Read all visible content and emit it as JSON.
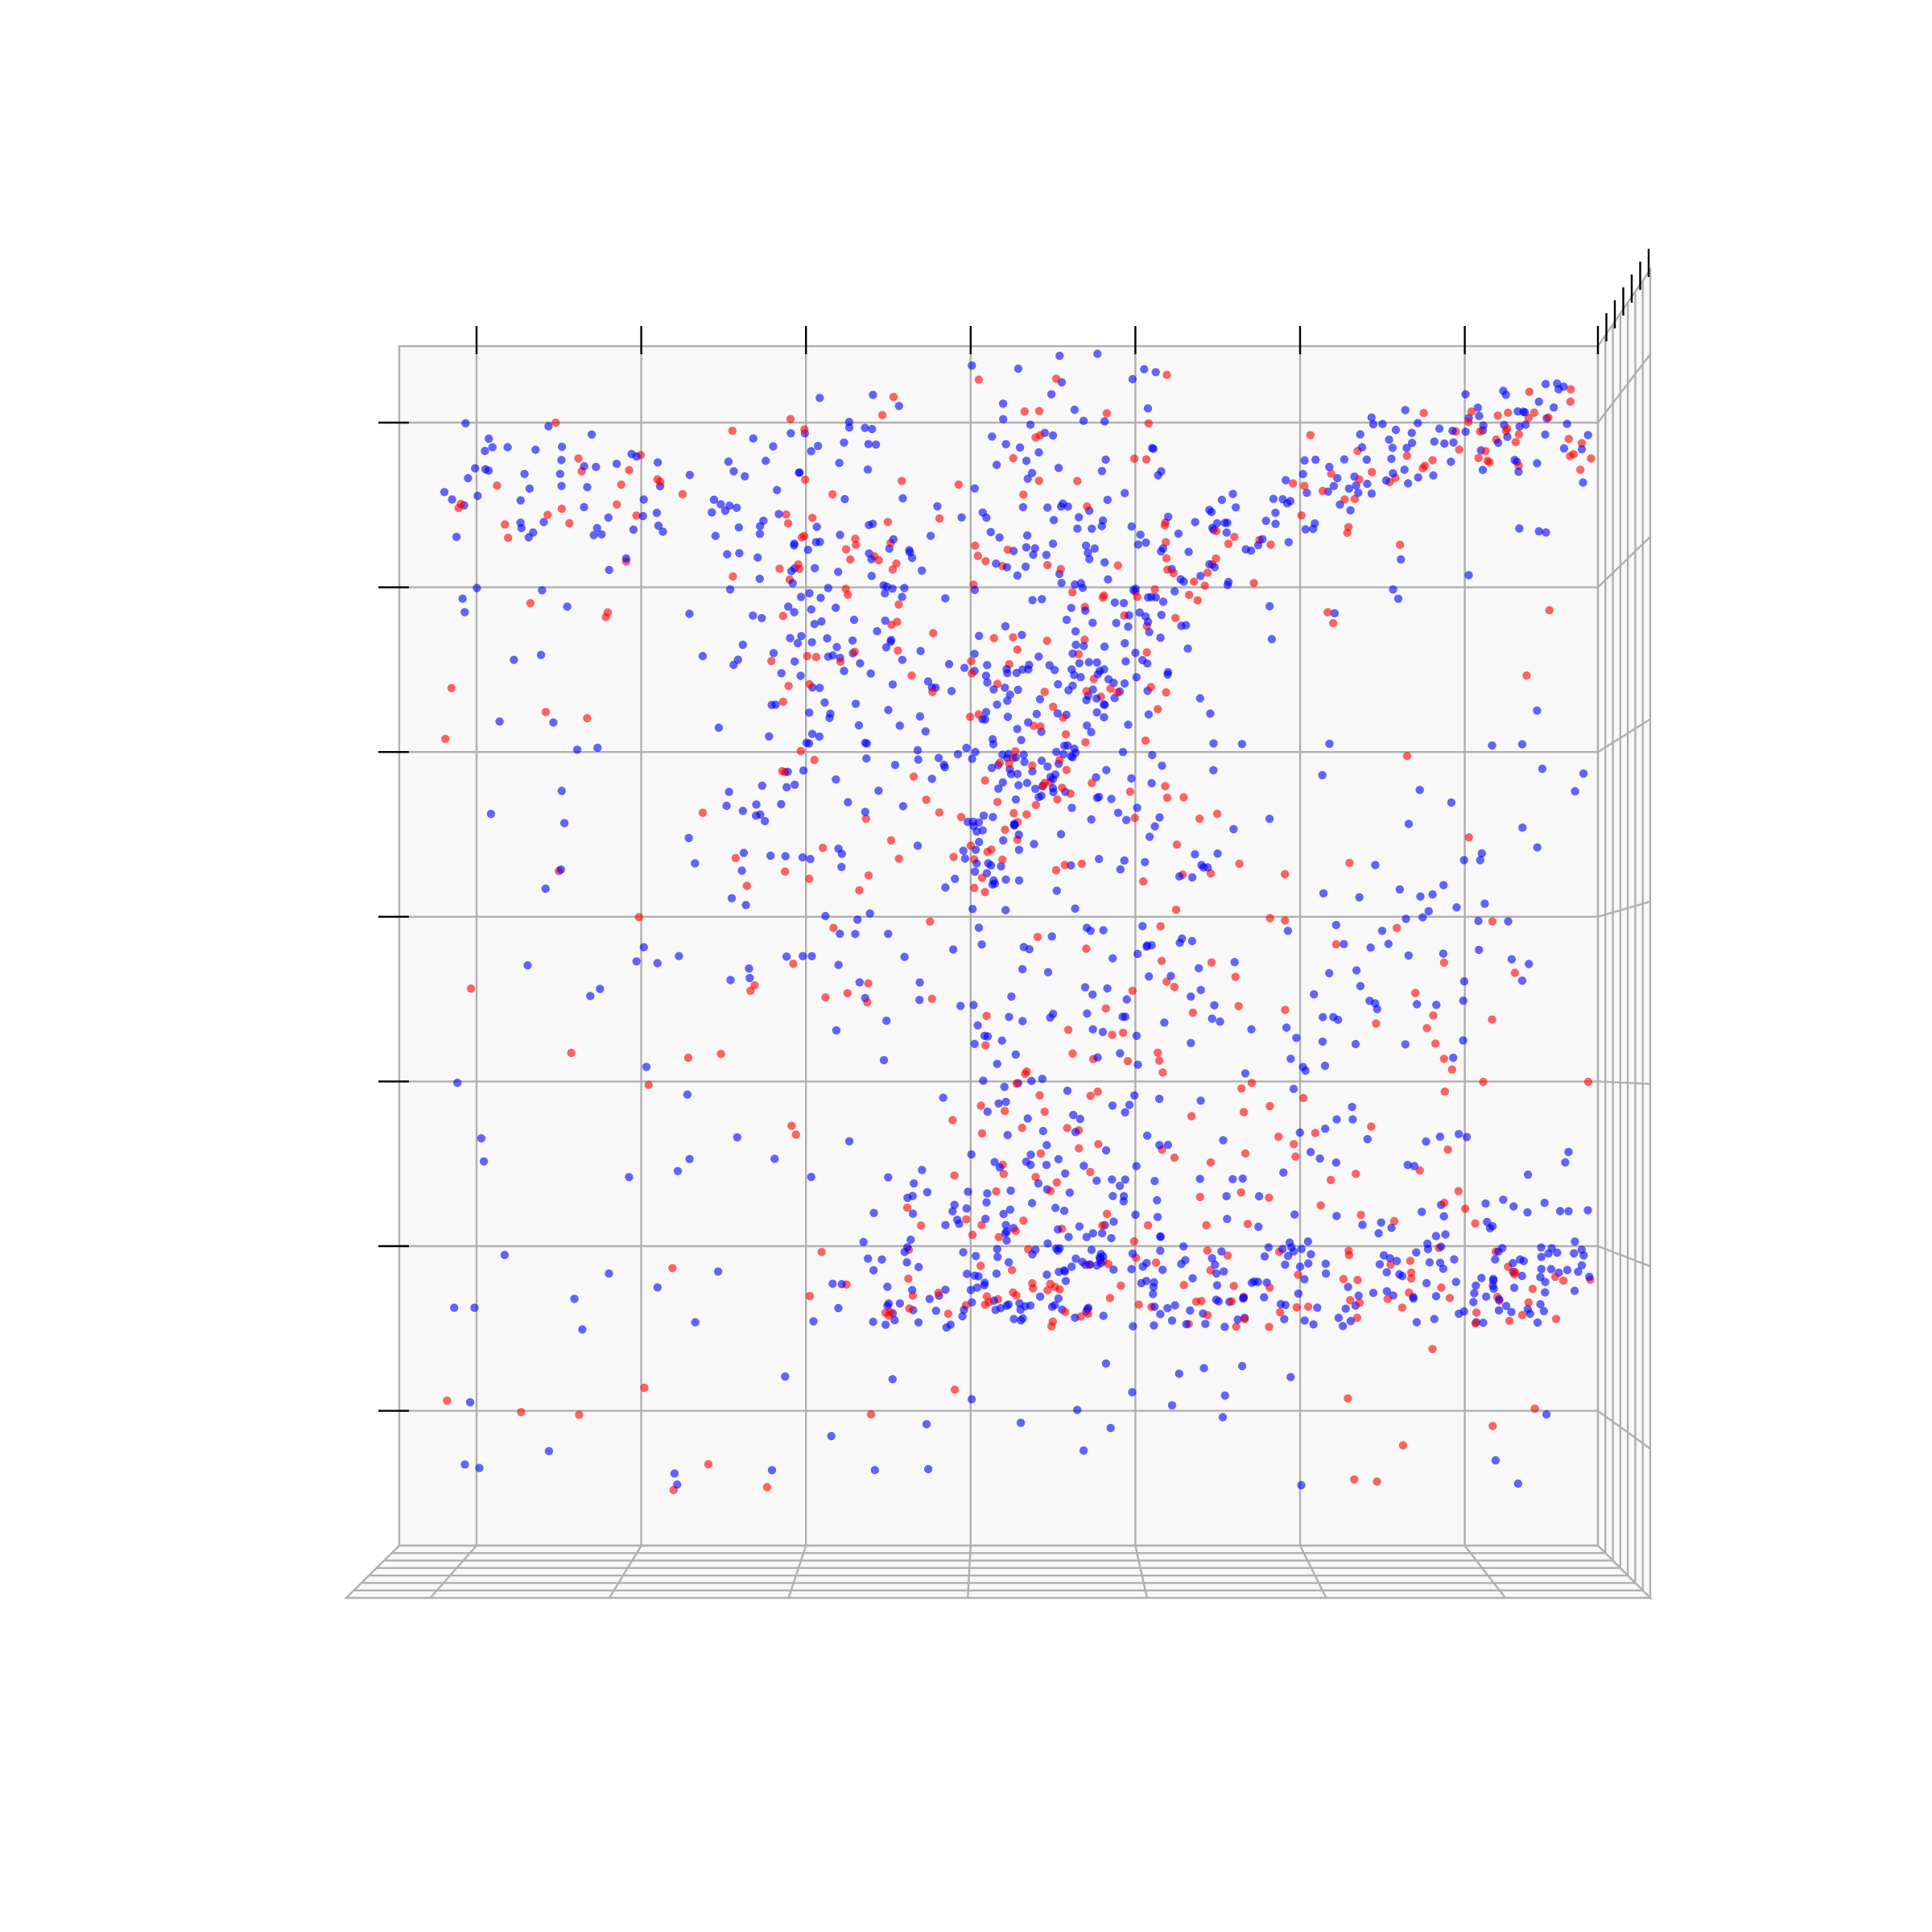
{
  "chart_data": {
    "type": "scatter",
    "title": "",
    "xlabel": "",
    "ylabel": "",
    "zlabel": "",
    "view": "3d-top-down",
    "tick_labels_visible": false,
    "grid": true,
    "legend": "none",
    "series": [
      {
        "color": "#0000ff",
        "alpha": 0.6
      },
      {
        "color": "#ff0000",
        "alpha": 0.6
      }
    ],
    "regions": [
      {
        "shape": "arc_band",
        "center": [
          6.6,
          1.5
        ],
        "radius": 5.5,
        "width": 0.5,
        "from_deg": 20,
        "to_deg": 150,
        "density": 0.22
      },
      {
        "shape": "rect",
        "x": [
          2.0,
          7.0
        ],
        "y": [
          1.5,
          2.0
        ],
        "density": 0.2
      },
      {
        "shape": "rect",
        "x": [
          2.5,
          7.0
        ],
        "y": [
          1.5,
          2.5
        ],
        "density": 0.1
      },
      {
        "shape": "rect",
        "x": [
          3.0,
          4.2
        ],
        "y": [
          4.5,
          7.5
        ],
        "density": 0.12
      },
      {
        "shape": "rect",
        "x": [
          3.0,
          4.2
        ],
        "y": [
          1.5,
          3.5
        ],
        "density": 0.14
      },
      {
        "shape": "rect",
        "x": [
          1.5,
          4.5
        ],
        "y": [
          3.5,
          6.5
        ],
        "density": 0.08
      },
      {
        "shape": "rect",
        "x": [
          4.0,
          6.2
        ],
        "y": [
          2.5,
          4.5
        ],
        "density": 0.05
      },
      {
        "shape": "rect",
        "x": [
          -0.2,
          2.0
        ],
        "y": [
          6.3,
          7.0
        ],
        "density": 0.12
      },
      {
        "shape": "rect",
        "x": [
          1.8,
          2.6
        ],
        "y": [
          5.5,
          7.2
        ],
        "density": 0.12
      },
      {
        "shape": "rect",
        "x": [
          -0.2,
          6.8
        ],
        "y": [
          0.5,
          7.0
        ],
        "density": 0.02
      }
    ],
    "ticks": {
      "x": [
        0,
        1,
        2,
        3,
        4,
        5,
        6
      ],
      "y": [
        1,
        2,
        3,
        4,
        5,
        6,
        7
      ]
    }
  }
}
